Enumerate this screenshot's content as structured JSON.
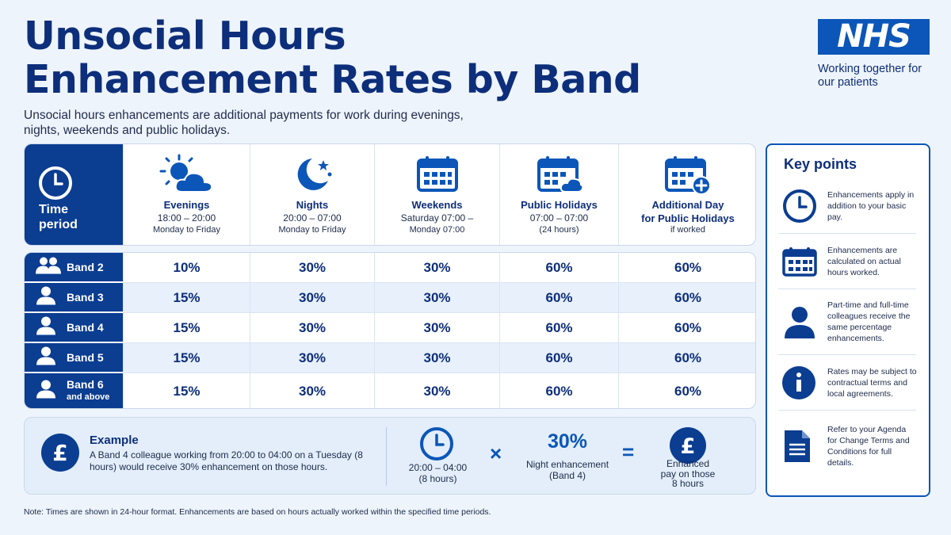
{
  "page": {
    "title_line1": "Unsocial Hours",
    "title_line2": "Enhancement Rates by Band",
    "subtitle": "Unsocial hours enhancements are additional payments for work during evenings, nights, weekends and public holidays."
  },
  "logo": {
    "text": "NHS",
    "tagline": "Working together for our patients"
  },
  "colors": {
    "navy": "#0b3d91",
    "brand_blue": "#0b56b8",
    "background": "#eef4fb"
  },
  "header": {
    "label_line1": "Time",
    "label_line2": "period",
    "label_icon": "clock-icon",
    "columns": [
      {
        "icon": "sun-cloud-icon",
        "title": "Evenings",
        "line1": "18:00 – 20:00",
        "line2": "Monday to Friday"
      },
      {
        "icon": "moon-stars-icon",
        "title": "Nights",
        "line1": "20:00 – 07:00",
        "line2": "Monday to Friday"
      },
      {
        "icon": "calendar-icon",
        "title": "Weekends",
        "line1": "Saturday 07:00 –",
        "line2": "Monday 07:00"
      },
      {
        "icon": "calendar-cloud-icon",
        "title": "Public Holidays",
        "line1": "07:00 – 07:00",
        "line2": "(24 hours)"
      },
      {
        "icon": "calendar-plus-icon",
        "title": "Additional Day",
        "title2": "for Public Holidays",
        "line2": "if worked"
      }
    ]
  },
  "bands": [
    {
      "label": "Band 2",
      "sub": "",
      "icon": "group-icon",
      "values": [
        "10%",
        "30%",
        "30%",
        "60%",
        "60%"
      ]
    },
    {
      "label": "Band 3",
      "sub": "",
      "icon": "person-icon",
      "values": [
        "15%",
        "30%",
        "30%",
        "60%",
        "60%"
      ]
    },
    {
      "label": "Band 4",
      "sub": "",
      "icon": "person-icon",
      "values": [
        "15%",
        "30%",
        "30%",
        "60%",
        "60%"
      ]
    },
    {
      "label": "Band 5",
      "sub": "",
      "icon": "person-icon",
      "values": [
        "15%",
        "30%",
        "30%",
        "60%",
        "60%"
      ]
    },
    {
      "label": "Band 6",
      "sub": "and above",
      "icon": "person-icon",
      "values": [
        "15%",
        "30%",
        "30%",
        "60%",
        "60%"
      ]
    }
  ],
  "example": {
    "title": "Example",
    "text": "A Band 4 colleague working from 20:00 to 04:00 on a Tuesday (8 hours) would receive 30% enhancement on those hours.",
    "time_line1": "20:00 – 04:00",
    "time_line2": "(8 hours)",
    "times_sign": "×",
    "rate": "30%",
    "rate_line1": "Night enhancement",
    "rate_line2": "(Band 4)",
    "equals_sign": "=",
    "result_line1": "Enhanced",
    "result_line2": "pay on those",
    "result_line3": "8 hours",
    "currency_symbol": "£"
  },
  "note": "Note: Times are shown in 24-hour format. Enhancements are based on hours actually worked within the specified time periods.",
  "key_points": {
    "title": "Key points",
    "items": [
      {
        "icon": "clock-icon",
        "text": "Enhancements apply in addition to your basic pay."
      },
      {
        "icon": "calendar-icon",
        "text": "Enhancements are calculated on actual hours worked."
      },
      {
        "icon": "person-icon",
        "text": "Part-time and full-time colleagues receive the same percentage enhancements."
      },
      {
        "icon": "info-icon",
        "text": "Rates may be subject to contractual terms and local agreements."
      },
      {
        "icon": "document-icon",
        "text": "Refer to your Agenda for Change Terms and Conditions for full details."
      }
    ]
  }
}
